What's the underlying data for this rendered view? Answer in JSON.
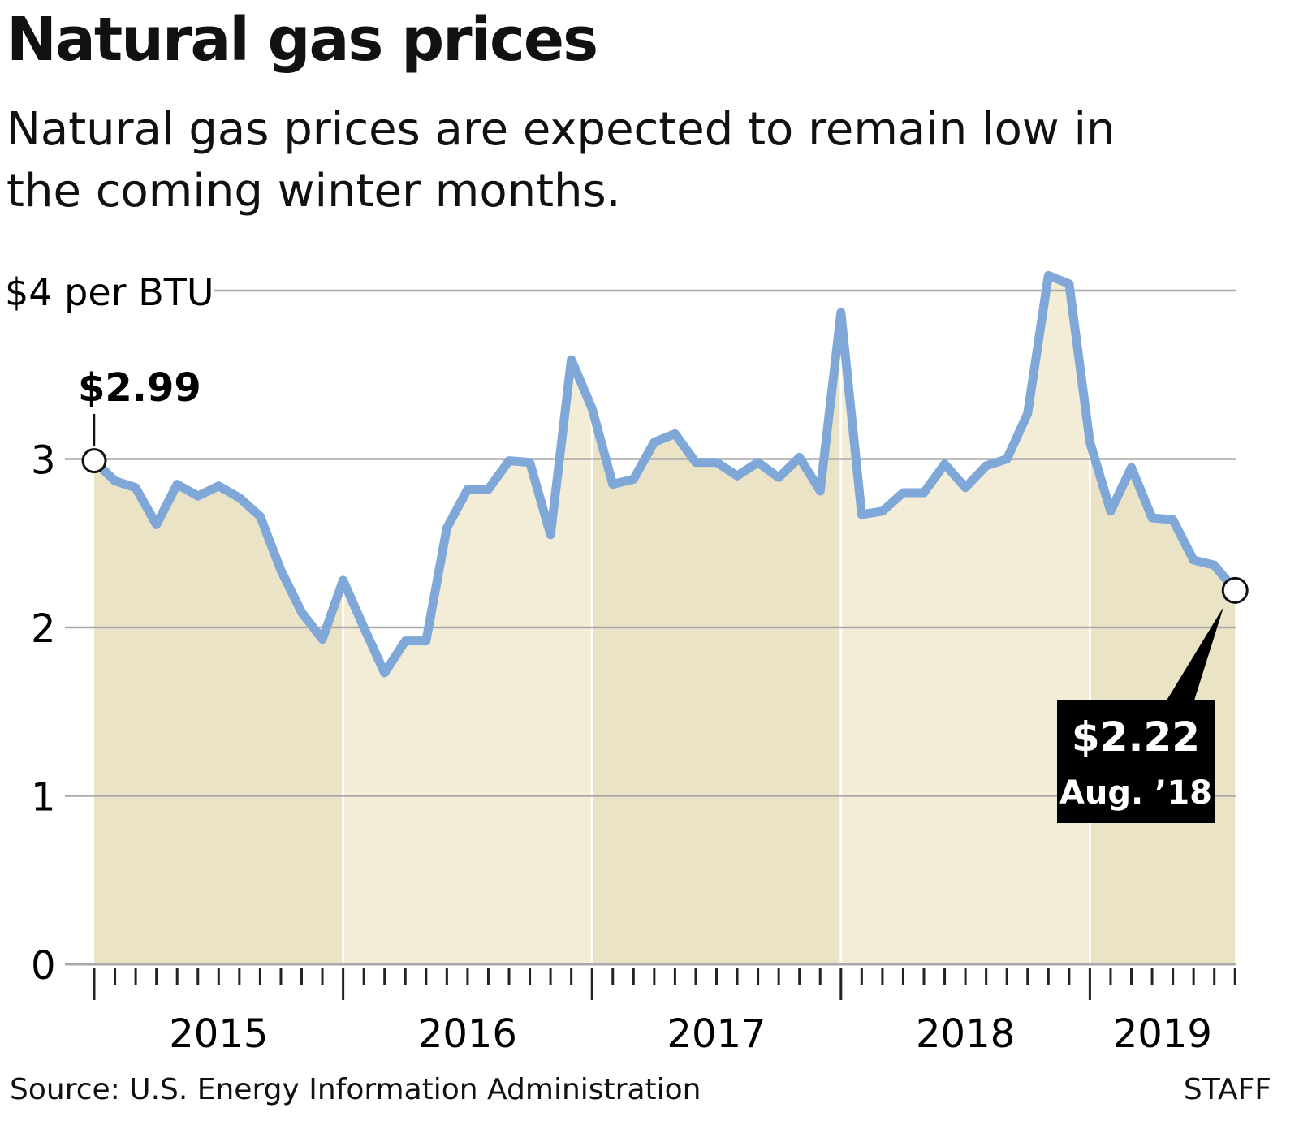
{
  "chart_data": {
    "type": "area",
    "title": "Natural gas prices",
    "subtitle": "Natural gas prices are expected to remain low in the coming winter months.",
    "ylabel": "$4 per BTU",
    "ylim": [
      0,
      4
    ],
    "yticks": [
      {
        "value": 0,
        "label": "0"
      },
      {
        "value": 1,
        "label": "1"
      },
      {
        "value": 2,
        "label": "2"
      },
      {
        "value": 3,
        "label": "3"
      },
      {
        "value": 4,
        "label": "$4 per BTU"
      }
    ],
    "xticks": [
      "2015",
      "2016",
      "2017",
      "2018",
      "2019"
    ],
    "months_per_year": 12,
    "grid": true,
    "series": [
      {
        "name": "Natural gas price",
        "color": "#7fa8d8",
        "values": [
          2.99,
          2.87,
          2.83,
          2.61,
          2.85,
          2.78,
          2.84,
          2.77,
          2.66,
          2.34,
          2.09,
          1.93,
          2.28,
          2.0,
          1.73,
          1.92,
          1.92,
          2.59,
          2.82,
          2.82,
          2.99,
          2.98,
          2.55,
          3.59,
          3.3,
          2.85,
          2.88,
          3.1,
          3.15,
          2.98,
          2.98,
          2.9,
          2.98,
          2.89,
          3.01,
          2.81,
          3.87,
          2.67,
          2.69,
          2.8,
          2.8,
          2.97,
          2.83,
          2.96,
          3.0,
          3.27,
          4.09,
          4.04,
          3.1,
          2.69,
          2.95,
          2.65,
          2.64,
          2.4,
          2.37,
          2.22
        ]
      }
    ],
    "annotations": [
      {
        "label": "$2.99",
        "point_index": 0
      },
      {
        "label": "$2.22",
        "sublabel": "Aug. ’18",
        "point_index": 55
      }
    ],
    "colors": {
      "fill_dark": "#eae3c5",
      "fill_light": "#f3edd7",
      "grid": "#a9a9a9",
      "axis": "#222222"
    }
  },
  "footer": {
    "source": "Source: U.S. Energy Information Administration",
    "credit": "STAFF"
  }
}
